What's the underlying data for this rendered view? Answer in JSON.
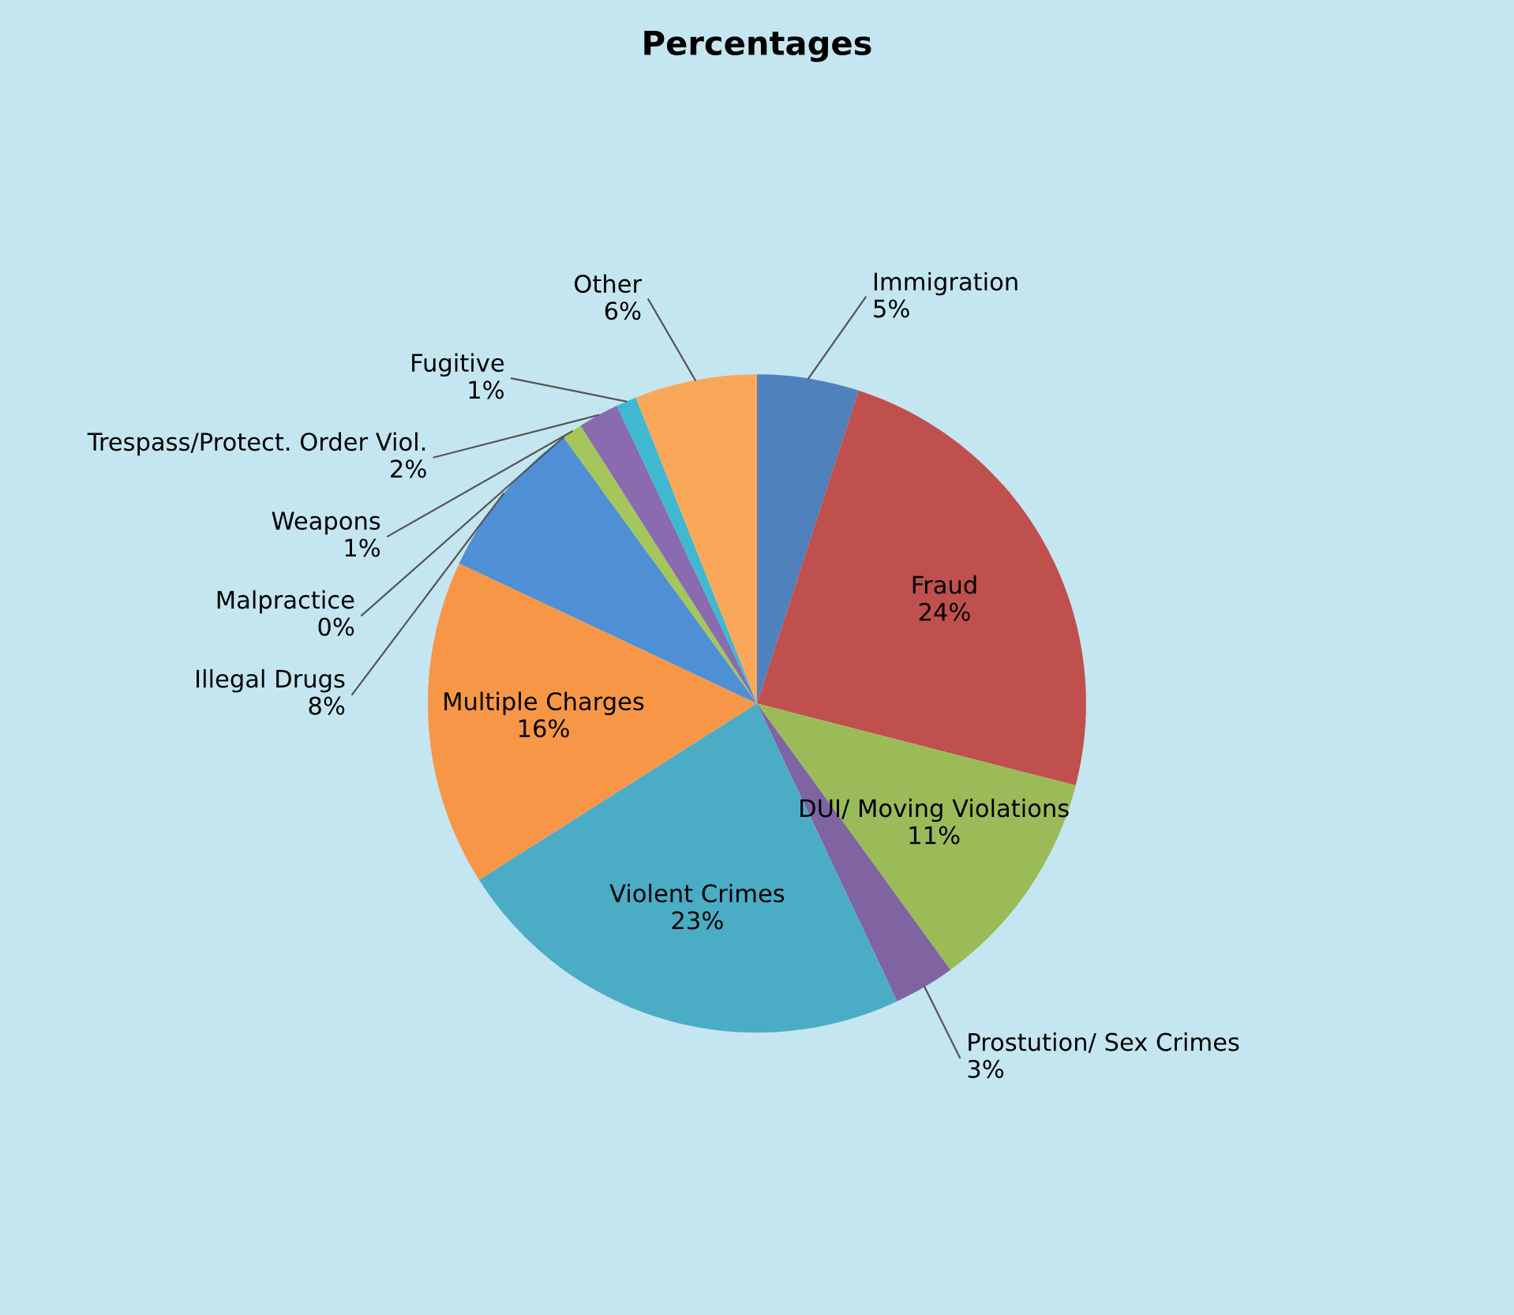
{
  "chart_data": {
    "type": "pie",
    "title": "Percentages",
    "categories": [
      "Immigration",
      "Fraud",
      "DUI/ Moving Violations",
      "Prostution/ Sex Crimes",
      "Violent Crimes",
      "Multiple Charges",
      "Illegal Drugs",
      "Malpractice",
      "Weapons",
      "Trespass/Protect. Order Viol.",
      "Fugitive",
      "Other"
    ],
    "values": [
      5,
      24,
      11,
      3,
      23,
      16,
      8,
      0,
      1,
      2,
      1,
      6
    ],
    "value_labels": [
      "5%",
      "24%",
      "11%",
      "3%",
      "23%",
      "16%",
      "8%",
      "0%",
      "1%",
      "2%",
      "1%",
      "6%"
    ],
    "colors": [
      "#4f81bd",
      "#c0504d",
      "#9bbb59",
      "#8064a2",
      "#4bacc6",
      "#f79646",
      "#4f8fd6",
      "#c0504d",
      "#a5c65a",
      "#8a6bb0",
      "#3fb8d0",
      "#f9a85a"
    ],
    "legend": false
  }
}
